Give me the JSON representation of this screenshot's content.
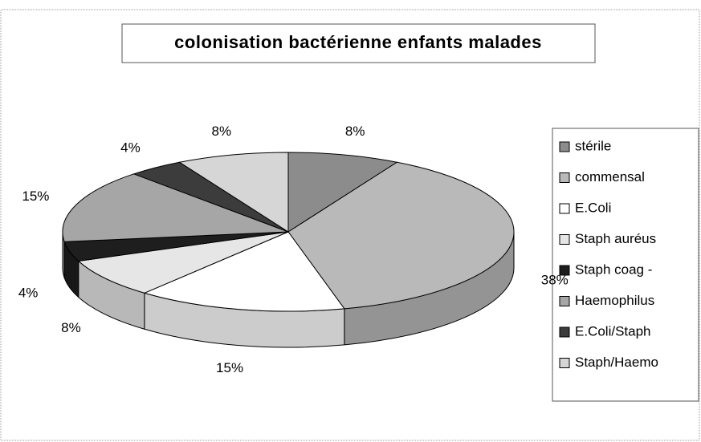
{
  "chart_data": {
    "type": "pie",
    "title": "colonisation bactérienne enfants malades",
    "categories": [
      "stérile",
      "commensal",
      "E.Coli",
      "Staph auréus",
      "Staph coag -",
      "Haemophilus",
      "E.Coli/Staph",
      "Staph/Haemo"
    ],
    "values": [
      8,
      38,
      15,
      8,
      4,
      15,
      4,
      8
    ],
    "value_labels": [
      "8%",
      "38%",
      "15%",
      "8%",
      "4%",
      "15%",
      "4%",
      "8%"
    ],
    "colors": [
      "#8c8c8c",
      "#b9b9b9",
      "#ffffff",
      "#e6e6e6",
      "#1e1e1e",
      "#a6a6a6",
      "#3c3c3c",
      "#d6d6d6"
    ]
  }
}
